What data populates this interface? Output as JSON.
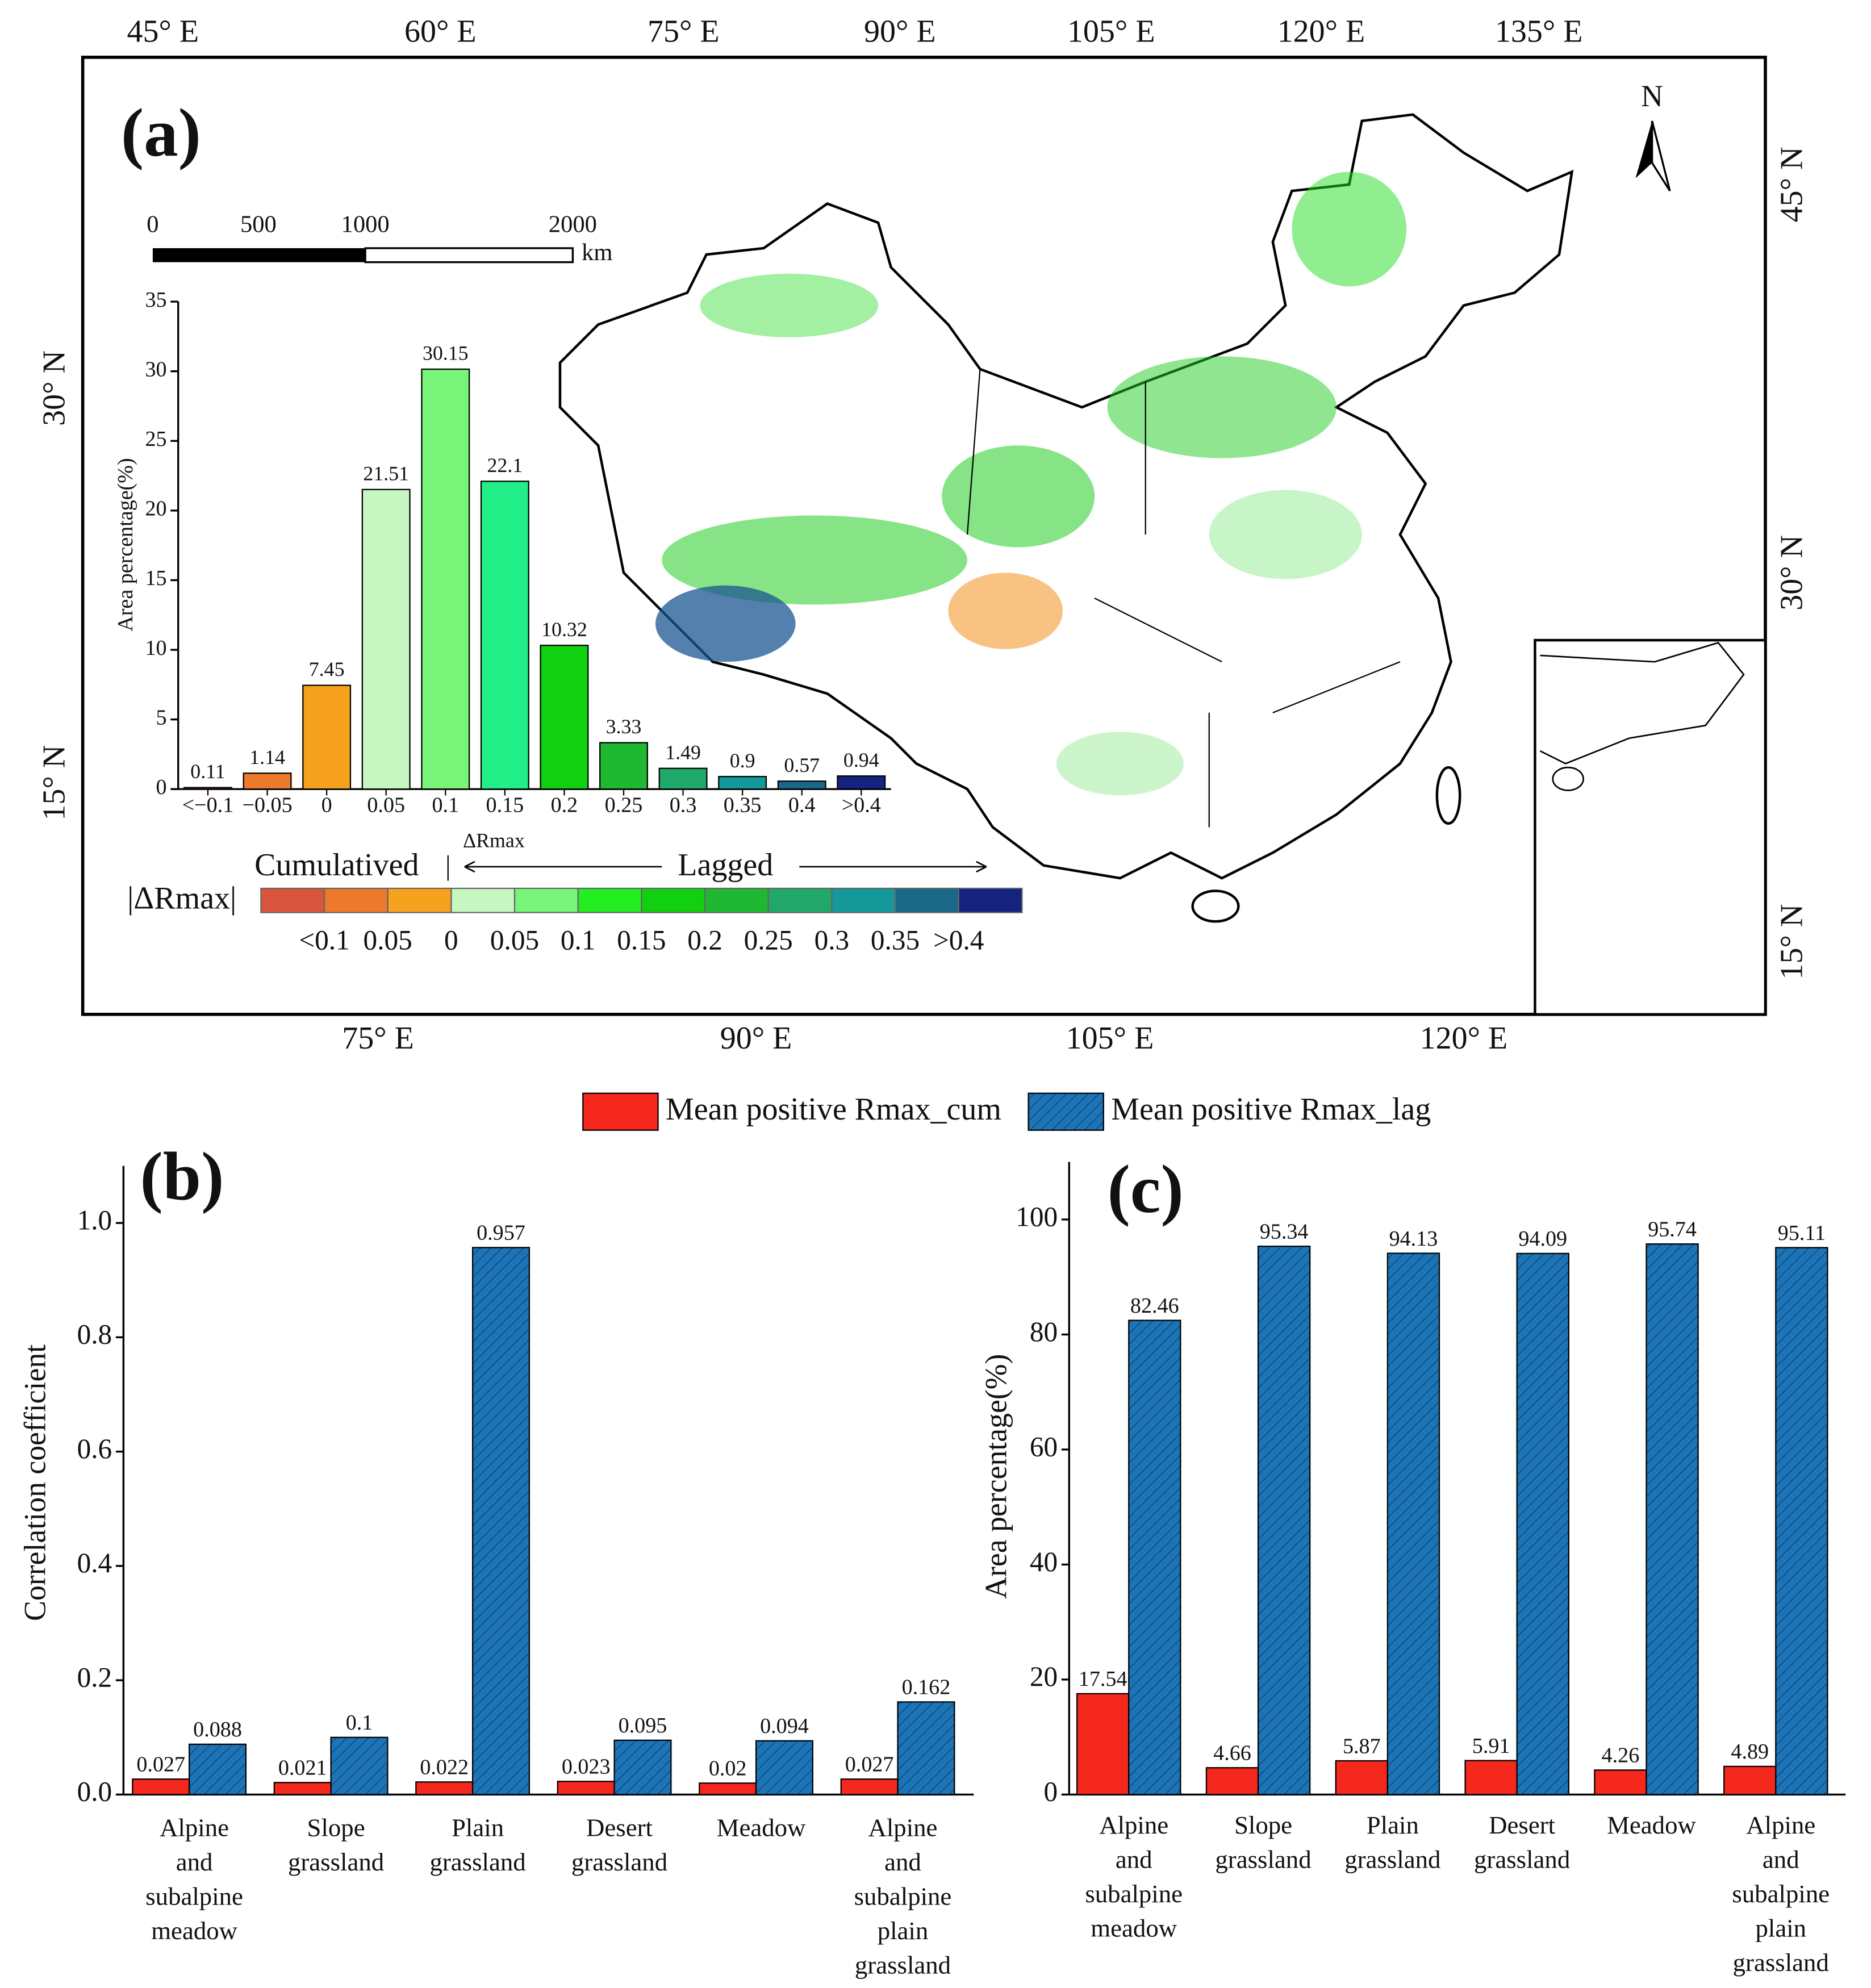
{
  "map": {
    "title": "(a)",
    "lon_top": [
      "45° E",
      "60° E",
      "75° E",
      "90° E",
      "105° E",
      "120° E",
      "135° E"
    ],
    "lon_bottom": [
      "75° E",
      "90° E",
      "105° E",
      "120° E"
    ],
    "lat_left": [
      "30° N",
      "15° N"
    ],
    "lat_right": [
      "45° N",
      "30° N",
      "15° N"
    ],
    "north": "N",
    "scale": {
      "labels": [
        "0",
        "500",
        "1000",
        "2000"
      ],
      "unit": "km"
    },
    "legend": {
      "cumulated": "Cumulatived",
      "lagged": "Lagged",
      "axis": "ΔRmax",
      "label": "|ΔRmax|",
      "colors": [
        "#d9553c",
        "#ec7a2a",
        "#f7a21e",
        "#c6f7c0",
        "#78f478",
        "#22ee22",
        "#10d010",
        "#1fb832",
        "#1fa86a",
        "#13999a",
        "#1a6888",
        "#13237e"
      ],
      "tick_labels": [
        "<0.1",
        "0.05",
        "0",
        "0.05",
        "0.1",
        "0.15",
        "0.2",
        "0.25",
        "0.3",
        "0.35",
        ">0.4"
      ]
    }
  },
  "chart_data": [
    {
      "type": "bar",
      "ylabel": "Area percentage(%)",
      "categories": [
        "<−0.1",
        "−0.05",
        "0",
        "0.05",
        "0.1",
        "0.15",
        "0.2",
        "0.25",
        "0.3",
        "0.35",
        "0.4",
        ">0.4"
      ],
      "values": [
        0.11,
        1.14,
        7.45,
        21.51,
        30.15,
        22.1,
        10.32,
        3.33,
        1.49,
        0.9,
        0.57,
        0.94
      ],
      "colors": [
        "#d9553c",
        "#ec7a2a",
        "#f7a21e",
        "#c6f7c0",
        "#78f478",
        "#22ee88",
        "#10d010",
        "#1fb832",
        "#1fa86a",
        "#13999a",
        "#1a6888",
        "#13237e"
      ],
      "ylim": [
        0,
        35
      ],
      "yticks": [
        0,
        5,
        10,
        15,
        20,
        25,
        30,
        35
      ]
    },
    {
      "type": "bar",
      "title": "(b)",
      "ylabel": "Correlation coefficient",
      "categories": [
        [
          "Alpine",
          "and",
          "subalpine",
          "meadow"
        ],
        [
          "Slope",
          "grassland"
        ],
        [
          "Plain",
          "grassland"
        ],
        [
          "Desert",
          "grassland"
        ],
        [
          "Meadow"
        ],
        [
          "Alpine",
          "and",
          "subalpine",
          "plain",
          "grassland"
        ]
      ],
      "series": [
        {
          "name": "Mean positive Rmax_cum",
          "color": "#f5281e",
          "values": [
            0.027,
            0.021,
            0.022,
            0.023,
            0.02,
            0.027
          ]
        },
        {
          "name": "Mean positive Rmax_lag",
          "color": "#1c74b6",
          "hatch": true,
          "values": [
            0.088,
            0.1,
            0.957,
            0.095,
            0.094,
            0.162
          ]
        }
      ],
      "ylim": [
        0,
        1.1
      ],
      "yticks": [
        {
          "value": 0,
          "label": "0.0"
        },
        0.2,
        0.4,
        0.6,
        0.8,
        {
          "value": 1,
          "label": "1.0"
        }
      ]
    },
    {
      "type": "bar",
      "title": "(c)",
      "ylabel": "Area percentage(%)",
      "categories": [
        [
          "Alpine",
          "and",
          "subalpine",
          "meadow"
        ],
        [
          "Slope",
          "grassland"
        ],
        [
          "Plain",
          "grassland"
        ],
        [
          "Desert",
          "grassland"
        ],
        [
          "Meadow"
        ],
        [
          "Alpine",
          "and",
          "subalpine",
          "plain",
          "grassland"
        ]
      ],
      "series": [
        {
          "color": "#f5281e",
          "values": [
            17.54,
            4.66,
            5.87,
            5.91,
            4.26,
            4.89
          ]
        },
        {
          "color": "#1c74b6",
          "hatch": true,
          "values": [
            82.46,
            95.34,
            94.13,
            94.09,
            95.74,
            95.11
          ]
        }
      ],
      "ylim": [
        0,
        110
      ],
      "yticks": [
        0,
        20,
        40,
        60,
        80,
        100
      ]
    }
  ]
}
